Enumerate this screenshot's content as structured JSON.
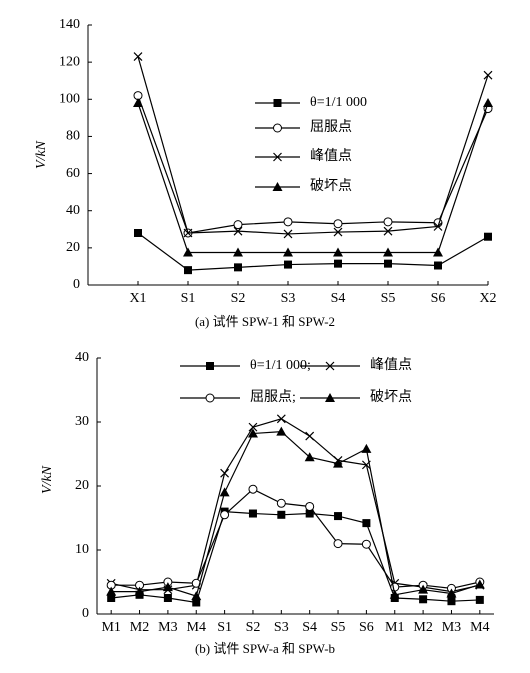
{
  "chart_data": [
    {
      "type": "line",
      "caption": "(a) 试件 SPW-1 和 SPW-2",
      "ylabel": "V/kN",
      "categories": [
        "X1",
        "S1",
        "S2",
        "S3",
        "S4",
        "S5",
        "S6",
        "X2"
      ],
      "ylim": [
        0,
        140
      ],
      "yticks": [
        0,
        20,
        40,
        60,
        80,
        100,
        120,
        140
      ],
      "series": [
        {
          "name": "θ=1/1 000",
          "color": "#000000",
          "marker": "square",
          "values": [
            28,
            8,
            9.5,
            11,
            11.5,
            11.5,
            10.5,
            26
          ]
        },
        {
          "name": "屈服点",
          "color": "#000000",
          "marker": "circle",
          "values": [
            102,
            28,
            32.5,
            34,
            33,
            34,
            33.5,
            95
          ]
        },
        {
          "name": "峰值点",
          "color": "#000000",
          "marker": "x",
          "values": [
            123,
            28,
            29,
            27.5,
            28.5,
            29,
            31.5,
            113
          ]
        },
        {
          "name": "破坏点",
          "color": "#000000",
          "marker": "triangle",
          "values": [
            98,
            17.5,
            17.5,
            17.5,
            17.5,
            17.5,
            17.5,
            98
          ]
        }
      ]
    },
    {
      "type": "line",
      "caption": "(b) 试件 SPW-a 和 SPW-b",
      "ylabel": "V/kN",
      "categories": [
        "M1",
        "M2",
        "M3",
        "M4",
        "S1",
        "S2",
        "S3",
        "S4",
        "S5",
        "S6",
        "M1",
        "M2",
        "M3",
        "M4"
      ],
      "ylim": [
        0,
        40
      ],
      "yticks": [
        0,
        10,
        20,
        30,
        40
      ],
      "series": [
        {
          "name": "θ=1/1 000;",
          "color": "#000000",
          "marker": "square",
          "values": [
            2.5,
            3,
            2.5,
            1.8,
            16,
            15.7,
            15.5,
            15.7,
            15.3,
            14.2,
            2.5,
            2.3,
            2,
            2.2
          ]
        },
        {
          "name": "峰值点",
          "color": "#000000",
          "marker": "x",
          "values": [
            4.8,
            3.8,
            3.8,
            4.5,
            22,
            29.2,
            30.5,
            27.8,
            24,
            23.3,
            4.8,
            4.2,
            3.5,
            4.5
          ]
        },
        {
          "name": "屈服点;",
          "color": "#000000",
          "marker": "circle",
          "values": [
            4.5,
            4.5,
            5,
            4.8,
            15.5,
            19.5,
            17.3,
            16.8,
            11,
            10.9,
            4.2,
            4.5,
            4,
            5
          ]
        },
        {
          "name": "破坏点",
          "color": "#000000",
          "marker": "triangle",
          "values": [
            3.5,
            3.5,
            4.2,
            2.8,
            19,
            28.2,
            28.5,
            24.5,
            23.5,
            25.8,
            3,
            3.8,
            3.2,
            4.6
          ]
        }
      ]
    }
  ]
}
